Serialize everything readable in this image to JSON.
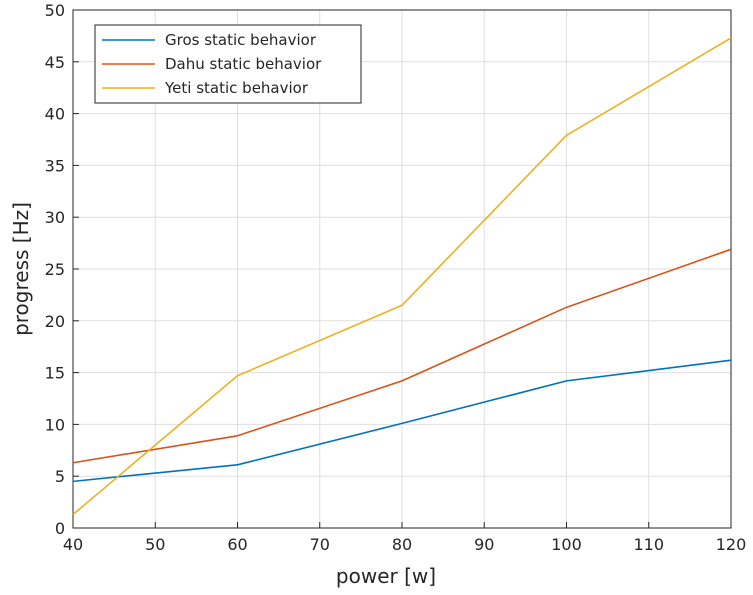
{
  "chart_data": {
    "type": "line",
    "title": "",
    "xlabel": "power [w]",
    "ylabel": "progress [Hz]",
    "xlim": [
      40,
      120
    ],
    "ylim": [
      0,
      50
    ],
    "x_ticks": [
      40,
      50,
      60,
      70,
      80,
      90,
      100,
      110,
      120
    ],
    "y_ticks": [
      0,
      5,
      10,
      15,
      20,
      25,
      30,
      35,
      40,
      45,
      50
    ],
    "grid": true,
    "legend_position": "top-left",
    "x": [
      40,
      60,
      80,
      100,
      120
    ],
    "series": [
      {
        "name": "Gros static behavior",
        "color": "#0072bd",
        "values": [
          4.5,
          6.1,
          10.1,
          14.2,
          16.2
        ]
      },
      {
        "name": "Dahu static behavior",
        "color": "#d95319",
        "values": [
          6.3,
          8.9,
          14.2,
          21.3,
          26.9
        ]
      },
      {
        "name": "Yeti static behavior",
        "color": "#edb120",
        "values": [
          1.3,
          14.7,
          21.5,
          37.9,
          47.3
        ]
      }
    ]
  }
}
